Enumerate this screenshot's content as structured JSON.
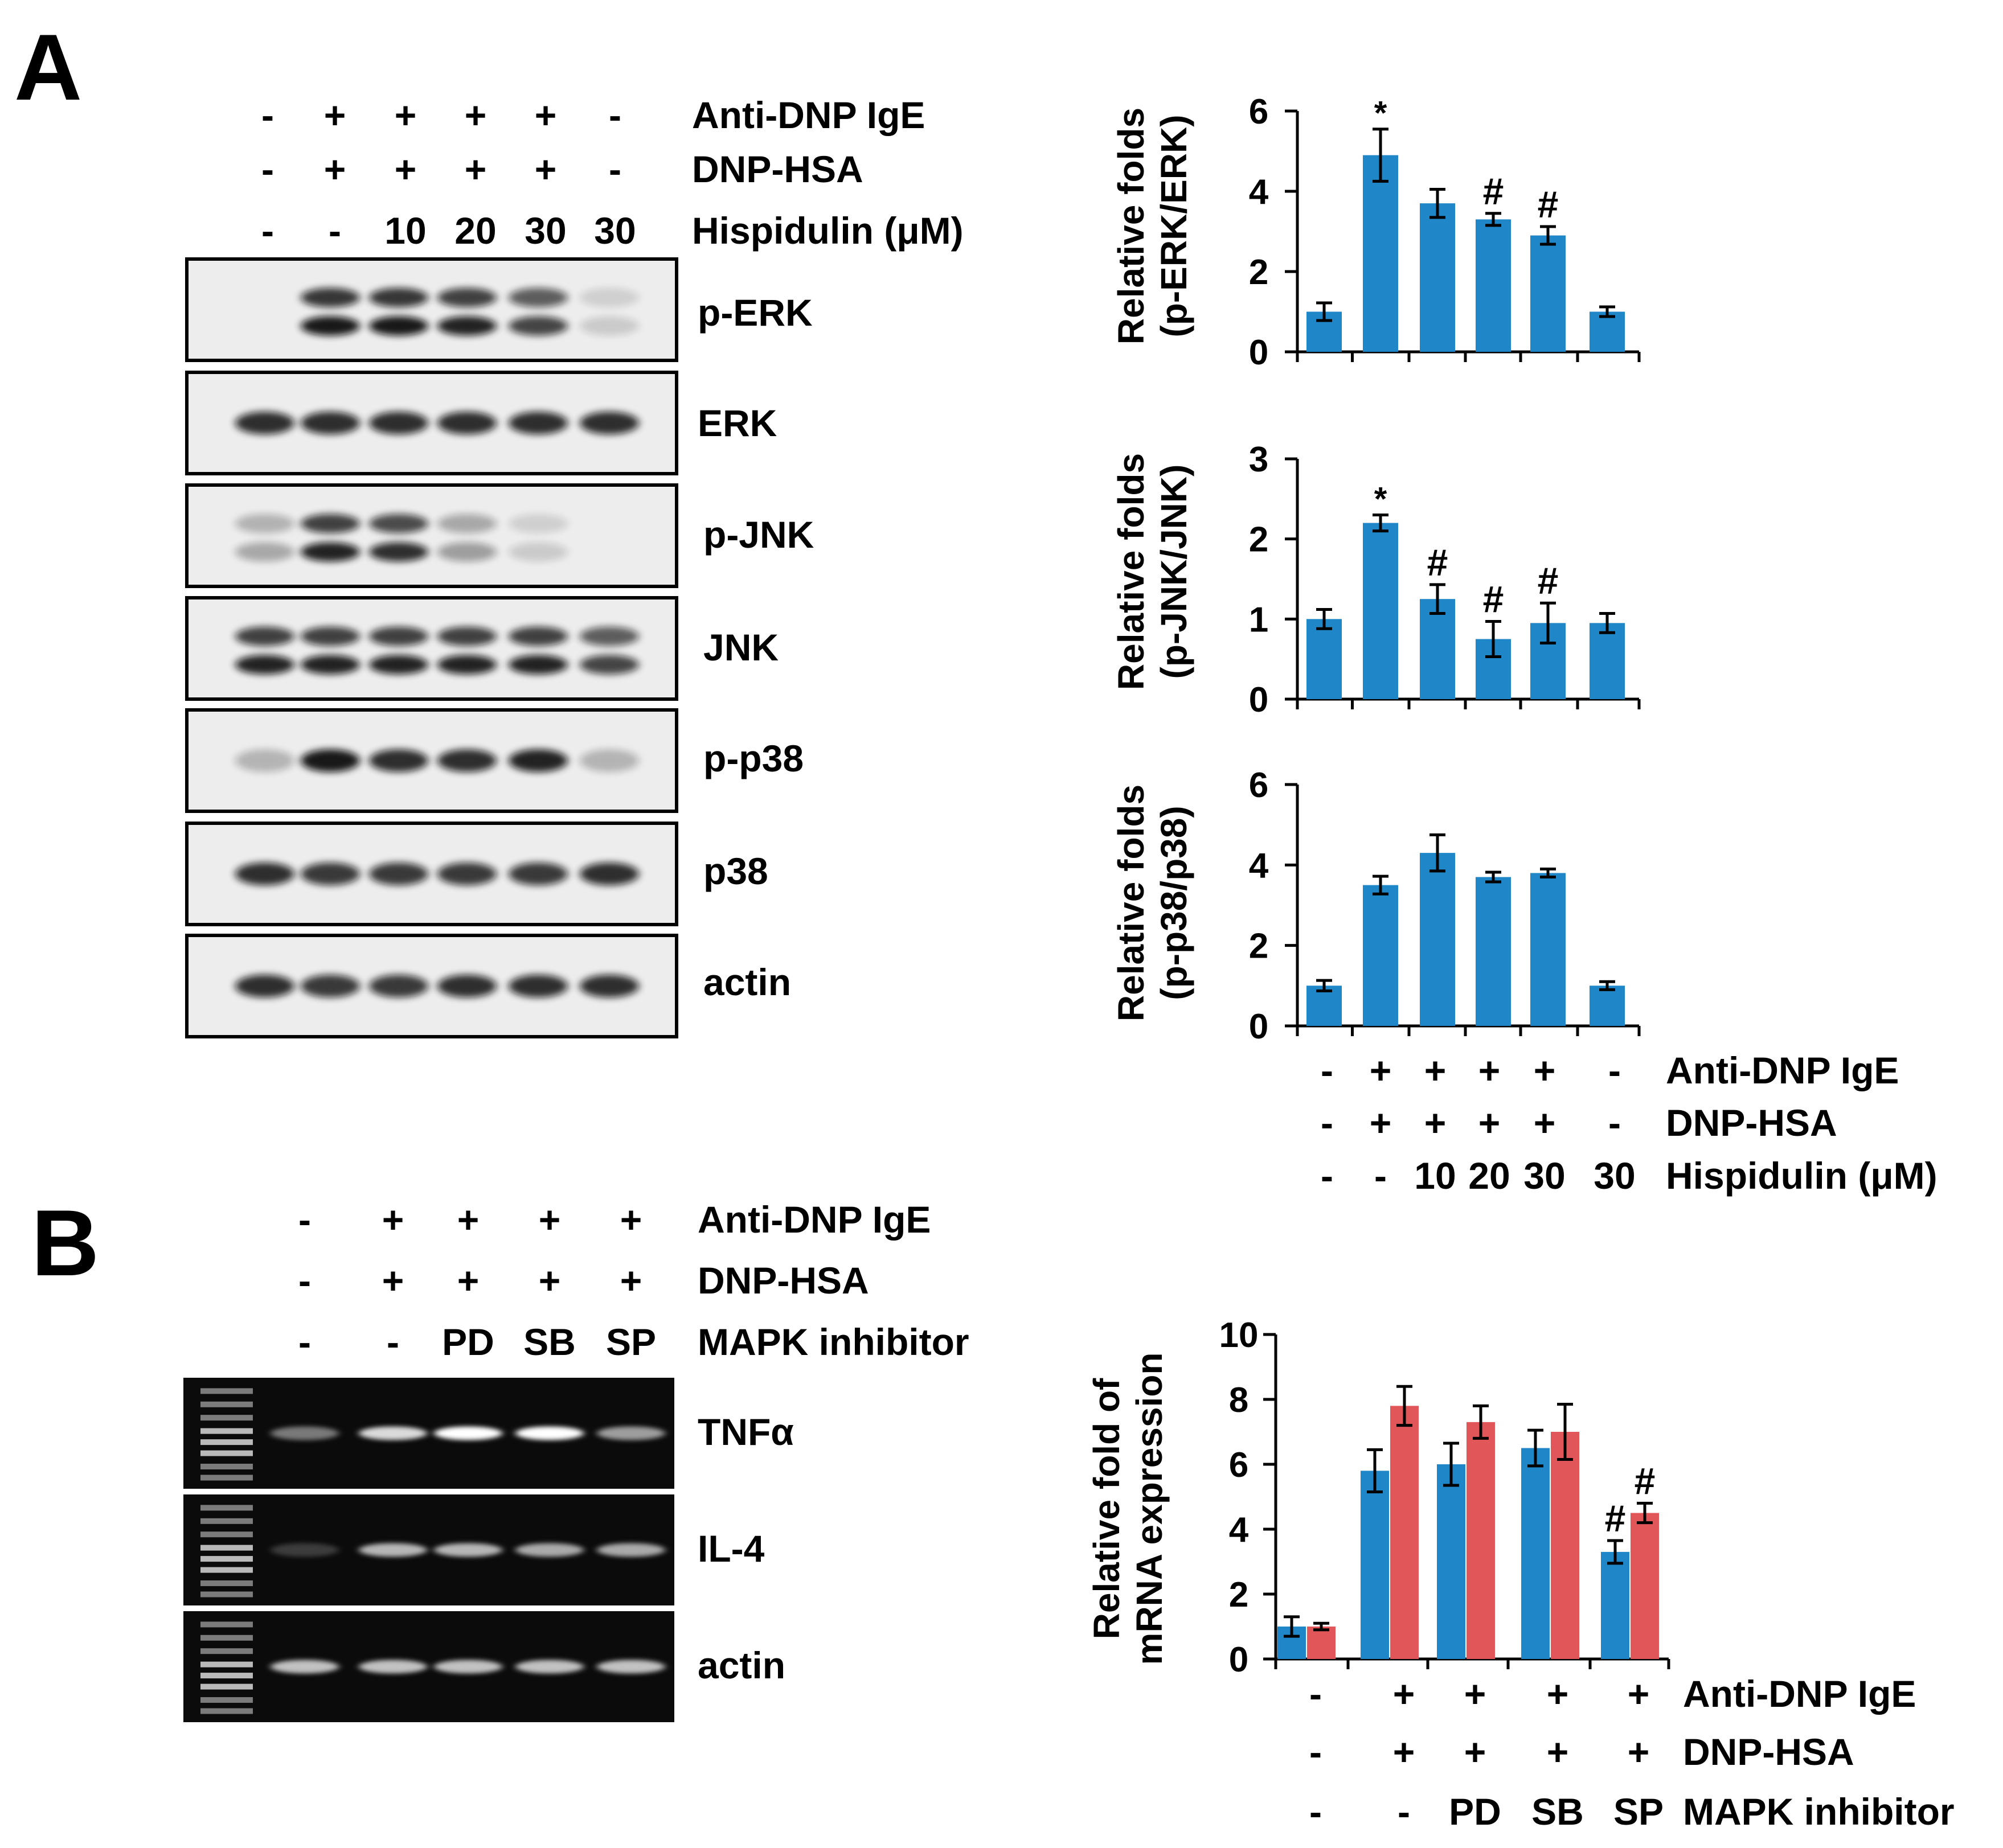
{
  "colors": {
    "blue": "#1f86c8",
    "red": "#e15658",
    "text": "#000000"
  },
  "panels": {
    "A": {
      "letter": "A",
      "treatments": [
        {
          "label": "Anti-DNP IgE",
          "values": [
            "-",
            "+",
            "+",
            "+",
            "+",
            "-"
          ]
        },
        {
          "label": "DNP-HSA",
          "values": [
            "-",
            "+",
            "+",
            "+",
            "+",
            "-"
          ]
        },
        {
          "label": "Hispidulin (μM)",
          "values": [
            "-",
            "-",
            "10",
            "20",
            "30",
            "30"
          ]
        }
      ],
      "blots": [
        {
          "label": "p-ERK",
          "intensity": [
            0.0,
            0.95,
            0.95,
            0.9,
            0.75,
            0.15
          ],
          "double": true
        },
        {
          "label": "ERK",
          "intensity": [
            0.85,
            0.85,
            0.85,
            0.85,
            0.85,
            0.85
          ],
          "double": false
        },
        {
          "label": "p-JNK",
          "intensity": [
            0.3,
            0.9,
            0.85,
            0.35,
            0.15,
            0.0
          ],
          "double": true
        },
        {
          "label": "JNK",
          "intensity": [
            0.9,
            0.9,
            0.9,
            0.9,
            0.9,
            0.75
          ],
          "double": true
        },
        {
          "label": "p-p38",
          "intensity": [
            0.25,
            0.95,
            0.85,
            0.85,
            0.9,
            0.25
          ],
          "double": false
        },
        {
          "label": "p38",
          "intensity": [
            0.85,
            0.8,
            0.8,
            0.8,
            0.8,
            0.85
          ],
          "double": false
        },
        {
          "label": "actin",
          "intensity": [
            0.85,
            0.8,
            0.8,
            0.85,
            0.85,
            0.85
          ],
          "double": false
        }
      ],
      "chart_x_treatments": [
        {
          "label": "Anti-DNP IgE",
          "values": [
            "-",
            "+",
            "+",
            "+",
            "+",
            "-"
          ]
        },
        {
          "label": "DNP-HSA",
          "values": [
            "-",
            "+",
            "+",
            "+",
            "+",
            "-"
          ]
        },
        {
          "label": "Hispidulin (μM)",
          "values": [
            "-",
            "-",
            "10",
            "20",
            "30",
            "30"
          ]
        }
      ]
    },
    "B": {
      "letter": "B",
      "treatments": [
        {
          "label": "Anti-DNP IgE",
          "values": [
            "-",
            "+",
            "+",
            "+",
            "+"
          ]
        },
        {
          "label": "DNP-HSA",
          "values": [
            "-",
            "+",
            "+",
            "+",
            "+"
          ]
        },
        {
          "label": "MAPK inhibitor",
          "values": [
            "-",
            "-",
            "PD",
            "SB",
            "SP"
          ]
        }
      ],
      "gels": [
        {
          "label": "TNFα",
          "intensity": [
            0.45,
            0.85,
            1.0,
            1.0,
            0.6
          ]
        },
        {
          "label": "IL-4",
          "intensity": [
            0.2,
            0.7,
            0.7,
            0.65,
            0.65
          ]
        },
        {
          "label": "actin",
          "intensity": [
            0.75,
            0.75,
            0.75,
            0.75,
            0.75
          ]
        }
      ],
      "chart_x_treatments": [
        {
          "label": "Anti-DNP IgE",
          "values": [
            "-",
            "+",
            "+",
            "+",
            "+"
          ]
        },
        {
          "label": "DNP-HSA",
          "values": [
            "-",
            "+",
            "+",
            "+",
            "+"
          ]
        },
        {
          "label": "MAPK inhibitor",
          "values": [
            "-",
            "-",
            "PD",
            "SB",
            "SP"
          ]
        }
      ]
    }
  },
  "chart_data": [
    {
      "type": "bar",
      "ylabel": [
        "Relative folds",
        "(p-ERK/ERK)"
      ],
      "ylim": [
        0,
        6
      ],
      "yticks": [
        0,
        2,
        4,
        6
      ],
      "series": [
        {
          "values": [
            1.0,
            4.9,
            3.7,
            3.3,
            2.9,
            1.0
          ],
          "errors": [
            0.22,
            0.65,
            0.35,
            0.15,
            0.22,
            0.12
          ],
          "color": "blue"
        }
      ],
      "annotations": [
        "",
        "*",
        "",
        "#",
        "#",
        ""
      ]
    },
    {
      "type": "bar",
      "ylabel": [
        "Relative folds",
        "(p-JNK/JNK)"
      ],
      "ylim": [
        0,
        3
      ],
      "yticks": [
        0,
        1,
        2,
        3
      ],
      "series": [
        {
          "values": [
            1.0,
            2.2,
            1.25,
            0.75,
            0.95,
            0.95
          ],
          "errors": [
            0.12,
            0.1,
            0.18,
            0.22,
            0.25,
            0.12
          ],
          "color": "blue"
        }
      ],
      "annotations": [
        "",
        "*",
        "#",
        "#",
        "#",
        ""
      ]
    },
    {
      "type": "bar",
      "ylabel": [
        "Relative folds",
        "(p-p38/p38)"
      ],
      "ylim": [
        0,
        6
      ],
      "yticks": [
        0,
        2,
        4,
        6
      ],
      "series": [
        {
          "values": [
            1.0,
            3.5,
            4.3,
            3.7,
            3.8,
            1.0
          ],
          "errors": [
            0.13,
            0.22,
            0.45,
            0.12,
            0.1,
            0.1
          ],
          "color": "blue"
        }
      ],
      "annotations": [
        "",
        "",
        "",
        "",
        "",
        ""
      ]
    },
    {
      "type": "bar",
      "ylabel": [
        "Relative fold of",
        "mRNA expression"
      ],
      "ylim": [
        0,
        10
      ],
      "yticks": [
        0,
        2,
        4,
        6,
        8,
        10
      ],
      "series": [
        {
          "values": [
            1.0,
            5.8,
            6.0,
            6.5,
            3.3
          ],
          "errors": [
            0.3,
            0.65,
            0.65,
            0.55,
            0.35
          ],
          "color": "blue"
        },
        {
          "values": [
            1.0,
            7.8,
            7.3,
            7.0,
            4.5
          ],
          "errors": [
            0.1,
            0.6,
            0.5,
            0.85,
            0.3
          ],
          "color": "red"
        }
      ],
      "annotations": [
        [
          "",
          "",
          "",
          "",
          "#"
        ],
        [
          "",
          "",
          "",
          "",
          "#"
        ]
      ]
    }
  ]
}
